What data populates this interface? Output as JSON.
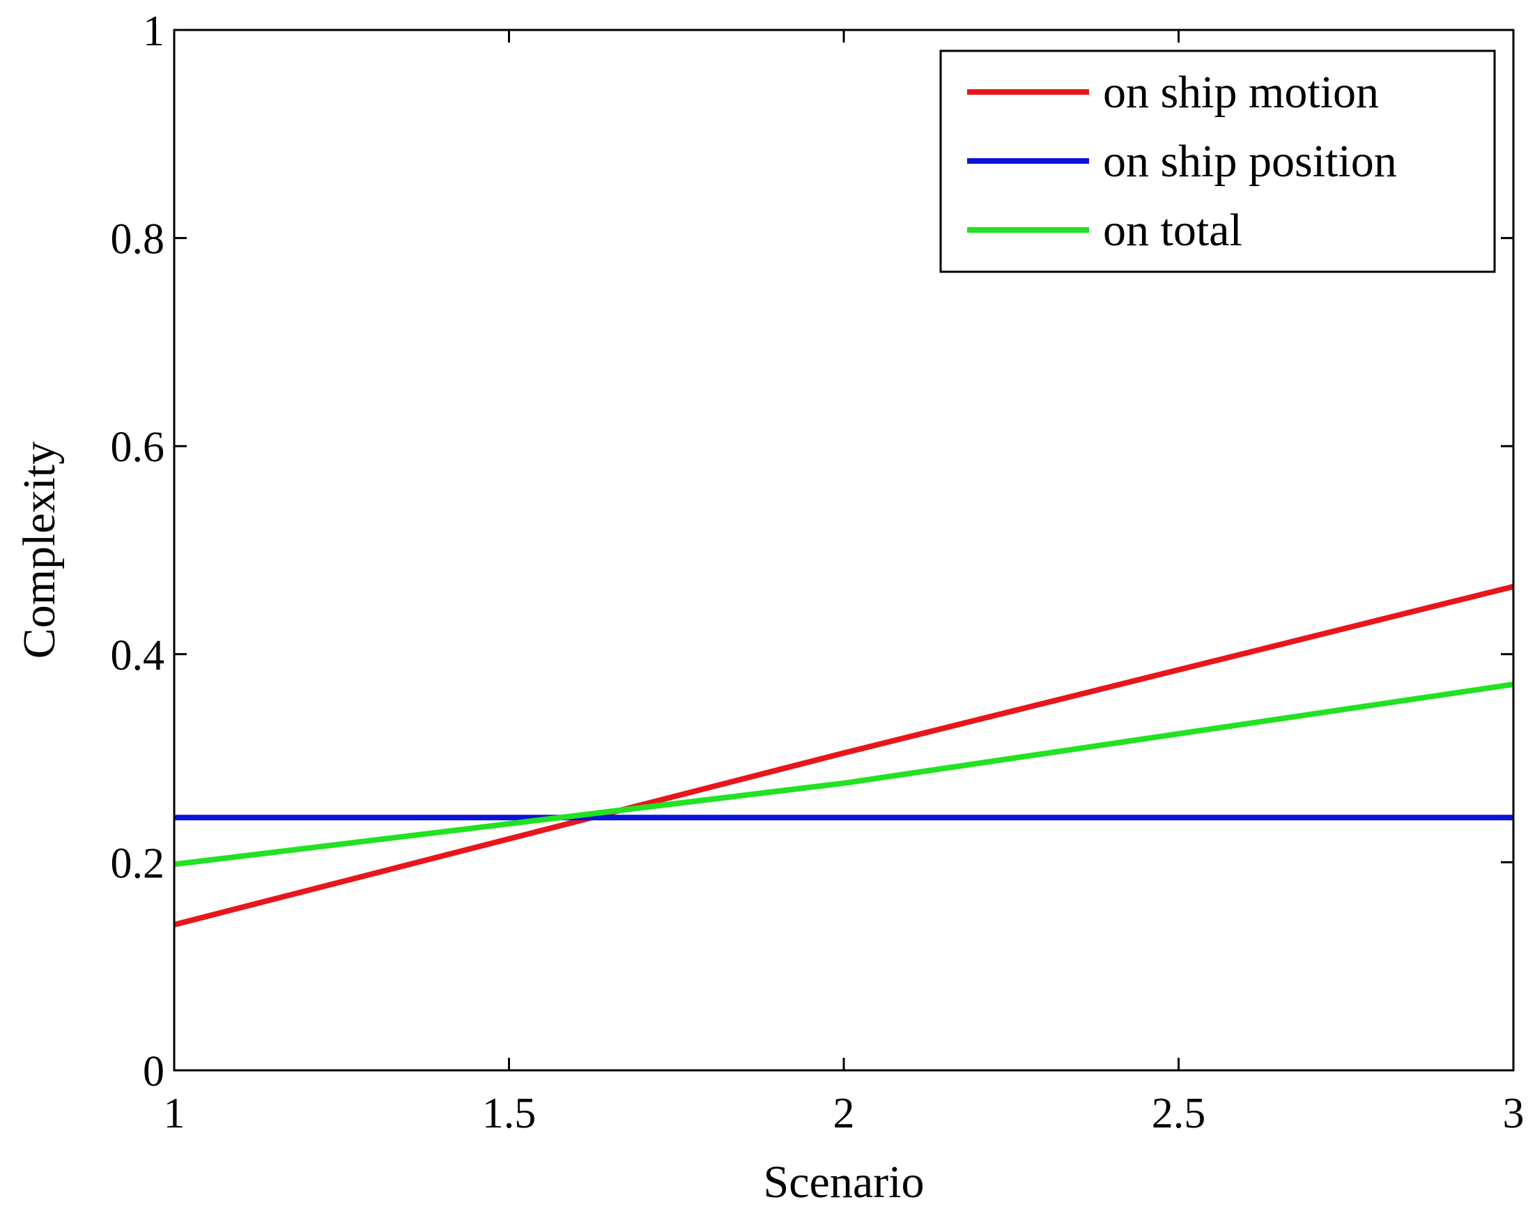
{
  "chart_data": {
    "type": "line",
    "title": "",
    "xlabel": "Scenario",
    "ylabel": "Complexity",
    "xlim": [
      1,
      3
    ],
    "ylim": [
      0,
      1
    ],
    "x_ticks": [
      "1",
      "1.5",
      "2",
      "2.5",
      "3"
    ],
    "y_ticks": [
      "0",
      "0.2",
      "0.4",
      "0.6",
      "0.8",
      "1"
    ],
    "grid": false,
    "legend_position": "top-right",
    "series": [
      {
        "name": "on ship motion",
        "color": "#e8161b",
        "x": [
          1,
          2,
          3
        ],
        "y": [
          0.14,
          0.305,
          0.465
        ]
      },
      {
        "name": "on ship position",
        "color": "#0a14d6",
        "x": [
          1,
          2,
          3
        ],
        "y": [
          0.243,
          0.243,
          0.243
        ]
      },
      {
        "name": "on total",
        "color": "#22e222",
        "x": [
          1,
          2,
          3
        ],
        "y": [
          0.198,
          0.276,
          0.371
        ]
      }
    ]
  }
}
